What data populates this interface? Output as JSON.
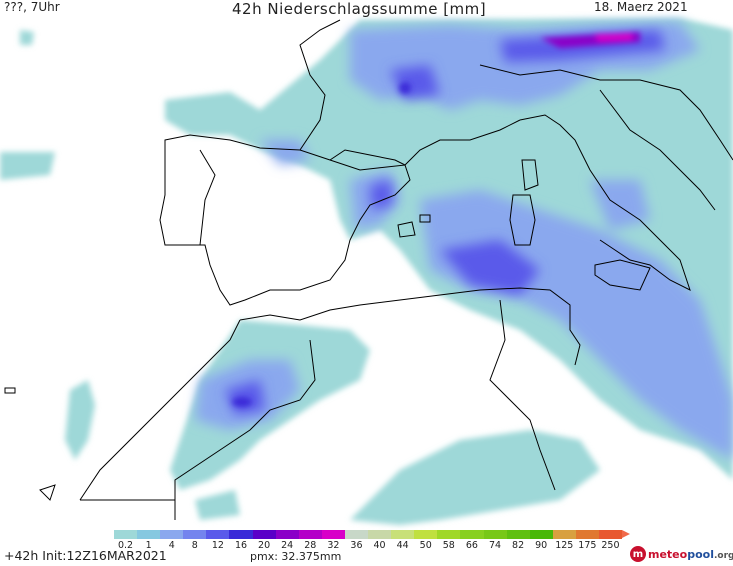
{
  "header": {
    "left": "???, 7Uhr",
    "title": "42h Niederschlagssumme [mm]",
    "right": "18. Maerz 2021"
  },
  "legend": {
    "levels": [
      "0.2",
      "1",
      "4",
      "8",
      "12",
      "16",
      "20",
      "24",
      "28",
      "32",
      "36",
      "40",
      "44",
      "50",
      "58",
      "66",
      "74",
      "82",
      "90",
      "125",
      "175",
      "250"
    ],
    "colors": [
      "#9ed8d8",
      "#86c8e0",
      "#8aa8ee",
      "#7484ee",
      "#5a5aea",
      "#3a2ad8",
      "#5a00c8",
      "#8a00c8",
      "#b400c8",
      "#d800c8",
      "#c8d8c8",
      "#c8d8a8",
      "#c8e078",
      "#c0e040",
      "#a0d828",
      "#88d020",
      "#78c818",
      "#60c010",
      "#48b808",
      "#d8a040",
      "#e07830",
      "#e85830"
    ]
  },
  "footer": {
    "init": "+42h Init:12Z16MAR2021",
    "pmx": "pmx: 32.375mm"
  },
  "logo": {
    "icon": "m",
    "text_a": "meteo",
    "text_b": "pool",
    "text_c": ".org"
  }
}
